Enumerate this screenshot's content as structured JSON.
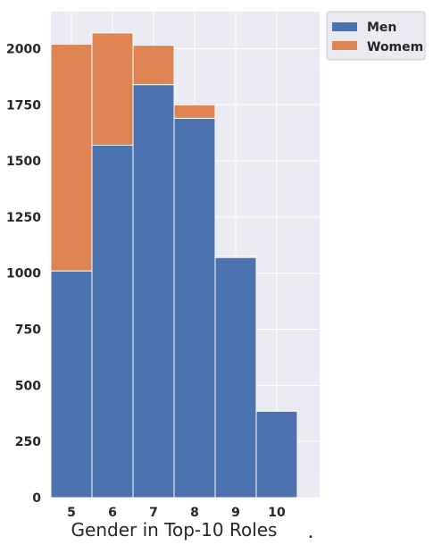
{
  "chart_data": {
    "type": "bar",
    "stacked": true,
    "categories": [
      "5",
      "6",
      "7",
      "8",
      "9",
      "10"
    ],
    "series": [
      {
        "name": "Men",
        "color": "#4c72b0",
        "values": [
          1010,
          1570,
          1840,
          1690,
          1070,
          385
        ]
      },
      {
        "name": "Womem",
        "color": "#dd8452",
        "values": [
          1010,
          500,
          175,
          60,
          5,
          0
        ]
      }
    ],
    "yticks": [
      0,
      250,
      500,
      750,
      1000,
      1250,
      1500,
      1750,
      2000
    ],
    "ylim": [
      0,
      2165
    ],
    "xlabel": "Gender in Top-10 Roles",
    "extra_mark": ".",
    "grid": true,
    "legend_position": "outside top-right",
    "plot_background": "#eaeaf2"
  }
}
